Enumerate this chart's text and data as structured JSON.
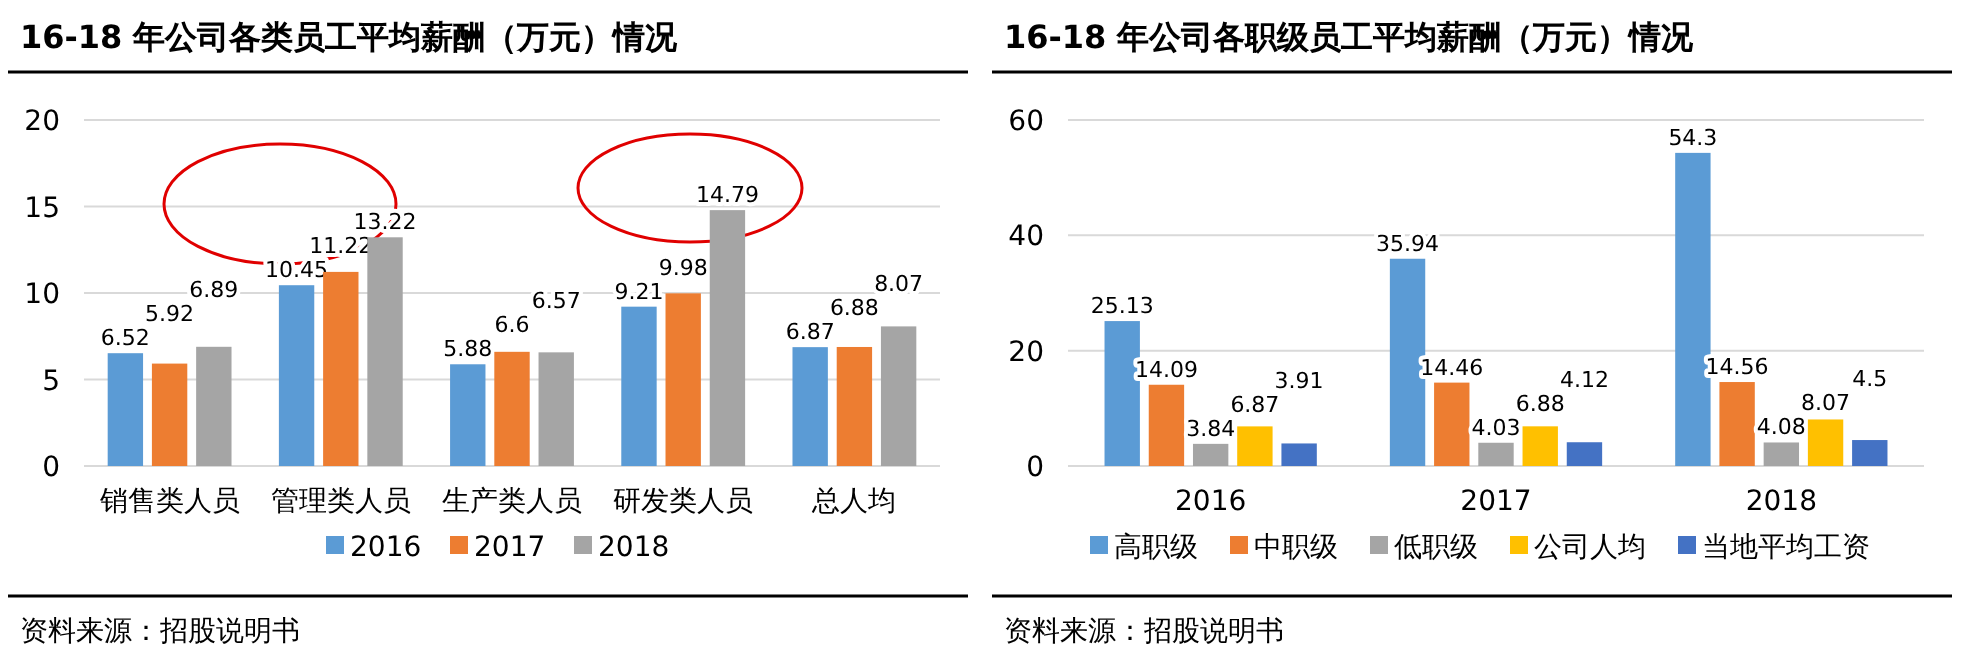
{
  "chart_data": [
    {
      "type": "bar",
      "title": "16-18 年公司各类员工平均薪酬（万元）情况",
      "categories": [
        "销售类人员",
        "管理类人员",
        "生产类人员",
        "研发类人员",
        "总人均"
      ],
      "series": [
        {
          "name": "2016",
          "color": "#5b9bd5",
          "values": [
            6.52,
            10.45,
            5.88,
            9.21,
            6.87
          ]
        },
        {
          "name": "2017",
          "color": "#ed7d31",
          "values": [
            5.92,
            11.22,
            6.6,
            9.98,
            6.88
          ]
        },
        {
          "name": "2018",
          "color": "#a5a5a5",
          "values": [
            6.89,
            13.22,
            6.57,
            14.79,
            8.07
          ]
        }
      ],
      "ylim": [
        0,
        20
      ],
      "yticks": [
        0,
        5,
        10,
        15,
        20
      ],
      "grid": "y",
      "legend": "bottom",
      "data_labels": true,
      "annotations": [
        "资料来源：招股说明书"
      ]
    },
    {
      "type": "bar",
      "title": "16-18 年公司各职级员工平均薪酬（万元）情况",
      "categories": [
        "2016",
        "2017",
        "2018"
      ],
      "series": [
        {
          "name": "高职级",
          "color": "#5b9bd5",
          "values": [
            25.13,
            35.94,
            54.3
          ]
        },
        {
          "name": "中职级",
          "color": "#ed7d31",
          "values": [
            14.09,
            14.46,
            14.56
          ]
        },
        {
          "name": "低职级",
          "color": "#a5a5a5",
          "values": [
            3.84,
            4.03,
            4.08
          ]
        },
        {
          "name": "公司人均",
          "color": "#ffc000",
          "values": [
            6.87,
            6.88,
            8.07
          ]
        },
        {
          "name": "当地平均工资",
          "color": "#4472c4",
          "values": [
            3.91,
            4.12,
            4.5
          ]
        }
      ],
      "ylim": [
        0,
        60
      ],
      "yticks": [
        0,
        20,
        40,
        60
      ],
      "grid": "y",
      "legend": "bottom",
      "data_labels": true,
      "annotations": [
        "资料来源：招股说明书"
      ]
    }
  ]
}
